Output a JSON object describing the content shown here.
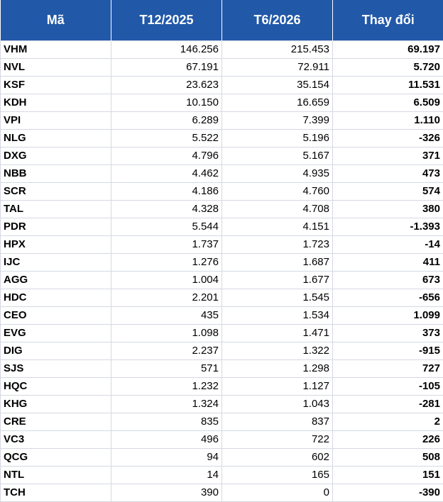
{
  "table": {
    "header": [
      "Mã",
      "T12/2025",
      "T6/2026",
      "Thay đổi"
    ],
    "rows": [
      [
        "VHM",
        "146.256",
        "215.453",
        "69.197"
      ],
      [
        "NVL",
        "67.191",
        "72.911",
        "5.720"
      ],
      [
        "KSF",
        "23.623",
        "35.154",
        "11.531"
      ],
      [
        "KDH",
        "10.150",
        "16.659",
        "6.509"
      ],
      [
        "VPI",
        "6.289",
        "7.399",
        "1.110"
      ],
      [
        "NLG",
        "5.522",
        "5.196",
        "-326"
      ],
      [
        "DXG",
        "4.796",
        "5.167",
        "371"
      ],
      [
        "NBB",
        "4.462",
        "4.935",
        "473"
      ],
      [
        "SCR",
        "4.186",
        "4.760",
        "574"
      ],
      [
        "TAL",
        "4.328",
        "4.708",
        "380"
      ],
      [
        "PDR",
        "5.544",
        "4.151",
        "-1.393"
      ],
      [
        "HPX",
        "1.737",
        "1.723",
        "-14"
      ],
      [
        "IJC",
        "1.276",
        "1.687",
        "411"
      ],
      [
        "AGG",
        "1.004",
        "1.677",
        "673"
      ],
      [
        "HDC",
        "2.201",
        "1.545",
        "-656"
      ],
      [
        "CEO",
        "435",
        "1.534",
        "1.099"
      ],
      [
        "EVG",
        "1.098",
        "1.471",
        "373"
      ],
      [
        "DIG",
        "2.237",
        "1.322",
        "-915"
      ],
      [
        "SJS",
        "571",
        "1.298",
        "727"
      ],
      [
        "HQC",
        "1.232",
        "1.127",
        "-105"
      ],
      [
        "KHG",
        "1.324",
        "1.043",
        "-281"
      ],
      [
        "CRE",
        "835",
        "837",
        "2"
      ],
      [
        "VC3",
        "496",
        "722",
        "226"
      ],
      [
        "QCG",
        "94",
        "602",
        "508"
      ],
      [
        "NTL",
        "14",
        "165",
        "151"
      ],
      [
        "TCH",
        "390",
        "0",
        "-390"
      ]
    ]
  }
}
